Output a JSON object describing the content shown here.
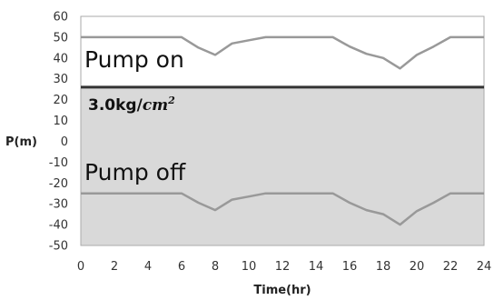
{
  "chart_data": {
    "type": "line",
    "xlabel": "Time(hr)",
    "ylabel": "P(m)",
    "xlim": [
      0,
      24
    ],
    "ylim": [
      -50,
      60
    ],
    "x_ticks": [
      0,
      2,
      4,
      6,
      8,
      10,
      12,
      14,
      16,
      18,
      20,
      22,
      24
    ],
    "y_ticks": [
      60,
      50,
      40,
      30,
      20,
      10,
      0,
      -10,
      -20,
      -30,
      -40,
      -50
    ],
    "grid": false,
    "colors": {
      "line": "#999999",
      "threshold": "#333333",
      "shade": "#d9d9d9",
      "border": "#aaaaaa"
    },
    "threshold": {
      "value": 26,
      "label": "3.0kg/",
      "unit": "cm",
      "unit_power": "2"
    },
    "shaded_region": {
      "from": -50,
      "to": 26
    },
    "annotations": {
      "pump_on": "Pump on",
      "pump_off": "Pump off"
    },
    "x": [
      0,
      1,
      2,
      3,
      4,
      5,
      6,
      7,
      8,
      9,
      10,
      11,
      12,
      13,
      14,
      15,
      16,
      17,
      18,
      19,
      20,
      21,
      22,
      23,
      24
    ],
    "series": [
      {
        "values": [
          50,
          50,
          50,
          50,
          50,
          50,
          50,
          45,
          41.5,
          47,
          48.5,
          50,
          50,
          50,
          50,
          50,
          45.5,
          42,
          40,
          35,
          41.5,
          45.5,
          50,
          50,
          50
        ]
      },
      {
        "values": [
          -25,
          -25,
          -25,
          -25,
          -25,
          -25,
          -25,
          -29.5,
          -33,
          -28,
          -26.5,
          -25,
          -25,
          -25,
          -25,
          -25,
          -29.5,
          -33,
          -35,
          -40,
          -33.5,
          -29.5,
          -25,
          -25,
          -25
        ]
      }
    ]
  }
}
